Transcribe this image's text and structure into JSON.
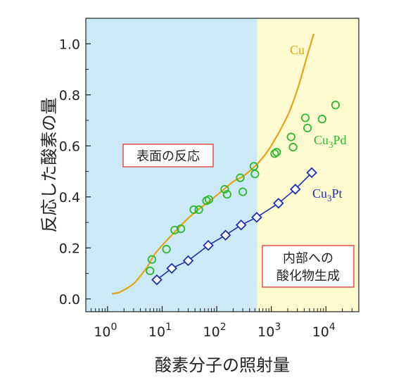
{
  "chart_data": {
    "type": "scatter",
    "xlabel": "酸素分子の照射量",
    "ylabel": "反応した酸素の量",
    "xscale": "log",
    "xlim": [
      0.4,
      40000
    ],
    "ylim": [
      -0.05,
      1.1
    ],
    "yticks": [
      "0.0",
      "0.2",
      "0.4",
      "0.6",
      "0.8",
      "1.0"
    ],
    "xticks": [
      {
        "base": "10",
        "exp": "0",
        "value": 1
      },
      {
        "base": "10",
        "exp": "1",
        "value": 10
      },
      {
        "base": "10",
        "exp": "2",
        "value": 100
      },
      {
        "base": "10",
        "exp": "3",
        "value": 1000
      },
      {
        "base": "10",
        "exp": "4",
        "value": 10000
      }
    ],
    "regions": [
      {
        "label": "表面の反応",
        "from": 0.4,
        "to": 550,
        "color": "#cce9f7"
      },
      {
        "label_lines": [
          "内部への",
          "酸化物生成"
        ],
        "from": 550,
        "to": 40000,
        "color": "#fdfbcf"
      }
    ],
    "series": [
      {
        "name": "Cu",
        "kind": "curve",
        "color": "#e6a415",
        "x": [
          1.2,
          1.6,
          2.2,
          3,
          4,
          5.5,
          7,
          10,
          15,
          25,
          40,
          70,
          120,
          200,
          300,
          500,
          800,
          1200,
          2000,
          3000,
          4500,
          6000
        ],
        "y": [
          0.02,
          0.025,
          0.04,
          0.06,
          0.09,
          0.13,
          0.17,
          0.21,
          0.25,
          0.3,
          0.34,
          0.38,
          0.42,
          0.46,
          0.48,
          0.52,
          0.57,
          0.63,
          0.72,
          0.82,
          0.95,
          1.04
        ]
      },
      {
        "name_parts": [
          "Cu",
          "3",
          "Pd"
        ],
        "kind": "circles",
        "color": "#2db82d",
        "x": [
          6,
          6.5,
          12,
          17,
          22,
          38,
          47,
          65,
          72,
          140,
          155,
          270,
          300,
          480,
          500,
          1150,
          1250,
          2300,
          2500,
          4200,
          4600,
          8500,
          15000
        ],
        "y": [
          0.11,
          0.155,
          0.195,
          0.27,
          0.275,
          0.35,
          0.35,
          0.385,
          0.39,
          0.43,
          0.41,
          0.475,
          0.42,
          0.52,
          0.49,
          0.57,
          0.575,
          0.635,
          0.595,
          0.71,
          0.67,
          0.705,
          0.76
        ]
      },
      {
        "name_parts": [
          "Cu",
          "3",
          "Pt"
        ],
        "kind": "diamonds",
        "color": "#1f2fb0",
        "x": [
          8,
          15,
          30,
          70,
          145,
          280,
          540,
          1350,
          2750,
          5500
        ],
        "y": [
          0.075,
          0.12,
          0.15,
          0.21,
          0.25,
          0.29,
          0.32,
          0.375,
          0.43,
          0.495
        ]
      }
    ]
  }
}
